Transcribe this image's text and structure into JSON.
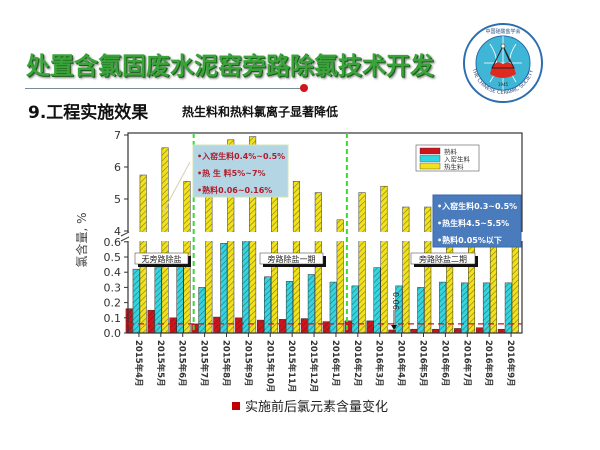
{
  "header": {
    "title": "处置含氯固废水泥窑旁路除氯技术开发",
    "section": "9.工程实施效果",
    "subtitle": "热生料和热料氯离子显著降低",
    "logo_text": "中国硅酸盐学会 THE CHINESE CERAMIC SOCIETY 1945",
    "accent_color": "#3aa33a"
  },
  "chart_data": {
    "type": "bar",
    "ylabel": "氯含量, %",
    "y_axis": "broken",
    "ylim_lower": [
      0,
      0.65
    ],
    "ylim_upper": [
      4,
      7
    ],
    "yticks_lower": [
      "0.0",
      "0.1",
      "0.2",
      "0.3",
      "0.4",
      "0.5",
      "0.6"
    ],
    "yticks_upper": [
      "4",
      "5",
      "6",
      "7"
    ],
    "categories": [
      "2015年4月",
      "2015年5月",
      "2015年6月",
      "2015年7月",
      "2015年8月",
      "2015年9月",
      "2015年10月",
      "2015年11月",
      "2015年12月",
      "2016年1月",
      "2016年2月",
      "2016年3月",
      "2016年4月",
      "2016年5月",
      "2016年6月",
      "2016年7月",
      "2016年8月",
      "2016年9月"
    ],
    "series": [
      {
        "name": "熟料",
        "color": "#d0141b",
        "values": [
          0.16,
          0.15,
          0.1,
          0.06,
          0.105,
          0.1,
          0.085,
          0.09,
          0.095,
          0.075,
          0.08,
          0.08,
          0.02,
          0.025,
          0.025,
          0.03,
          0.035,
          0.025
        ]
      },
      {
        "name": "入窑生料",
        "color": "#33d6e0",
        "values": [
          0.42,
          0.43,
          0.46,
          0.3,
          0.59,
          0.63,
          0.37,
          0.34,
          0.385,
          0.335,
          0.31,
          0.43,
          0.31,
          0.3,
          0.335,
          0.33,
          0.33,
          0.33
        ]
      },
      {
        "name": "热生料",
        "color": "#f2e21b",
        "values": [
          5.75,
          6.6,
          5.55,
          6.0,
          6.85,
          6.95,
          6.0,
          5.55,
          5.2,
          4.35,
          5.2,
          5.4,
          4.75,
          4.75,
          4.8,
          4.7,
          4.7,
          4.6
        ]
      }
    ],
    "reference_line": 0.06,
    "phase_dividers_after": [
      "2015年6月",
      "2016年1月"
    ],
    "phase_labels": [
      "无旁路除盐",
      "旁路除盐一期",
      "旁路除盐二期"
    ],
    "annotation": "0.06",
    "legend_position": "top-right",
    "callouts": [
      {
        "lines": [
          "•入窑生料0.4%~0.5%",
          "•热 生 料5%~7%",
          "•熟料0.06~0.16%"
        ]
      },
      {
        "lines": [
          "•入窑生料0.3~0.5%",
          "•热生料4.5~5.5%",
          "•熟料0.05%以下"
        ]
      }
    ],
    "caption": "实施前后氯元素含量变化"
  }
}
